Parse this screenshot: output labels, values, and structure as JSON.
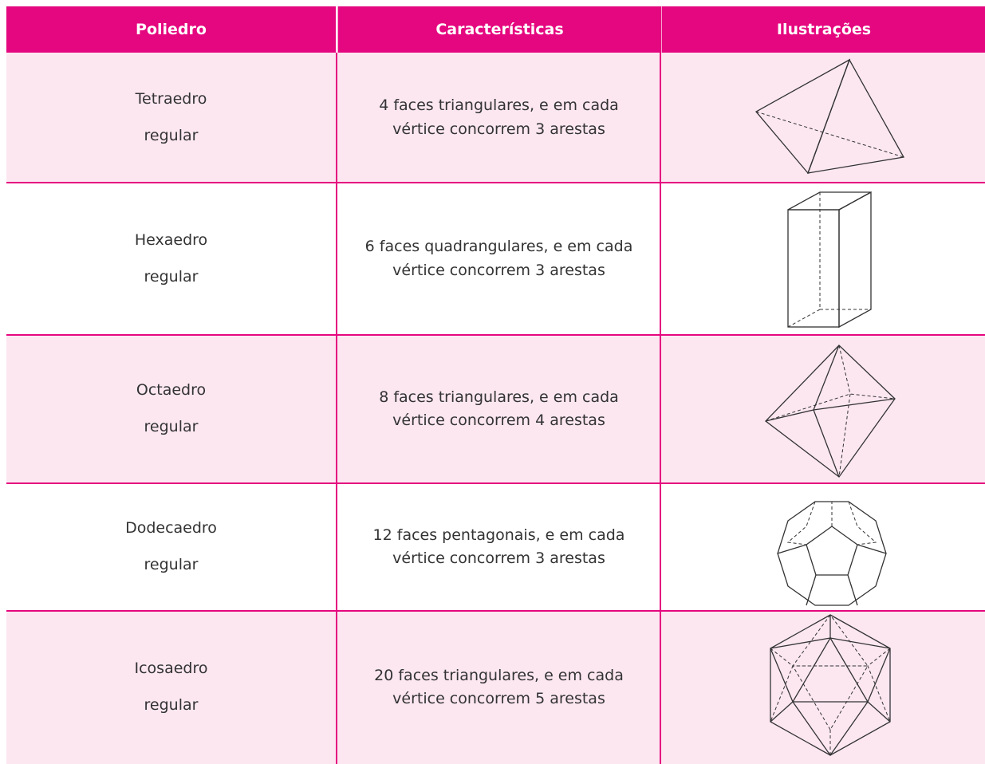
{
  "table": {
    "header": [
      "Poliedro",
      "Características",
      "Ilustrações"
    ],
    "rows": [
      {
        "poliedro": [
          "Tetraedro",
          "regular"
        ],
        "caracteristicas": [
          "4 faces triangulares, e em cada",
          "vértice concorrem 3 arestas"
        ]
      },
      {
        "poliedro": [
          "Hexaedro",
          "regular"
        ],
        "caracteristicas": [
          "6 faces quadrangulares, e em cada",
          "vértice concorrem 3 arestas"
        ]
      },
      {
        "poliedro": [
          "Octaedro",
          "regular"
        ],
        "caracteristicas": [
          "8 faces triangulares, e em cada",
          "vértice concorrem 4 arestas"
        ]
      },
      {
        "poliedro": [
          "Dodecaedro",
          "regular"
        ],
        "caracteristicas": [
          "12 faces pentagonais, e em cada",
          "vértice concorrem 3 arestas"
        ]
      },
      {
        "poliedro": [
          "Icosaedro",
          "regular"
        ],
        "caracteristicas": [
          "20 faces triangulares, e em cada",
          "vértice concorrem 5 arestas"
        ]
      }
    ]
  }
}
